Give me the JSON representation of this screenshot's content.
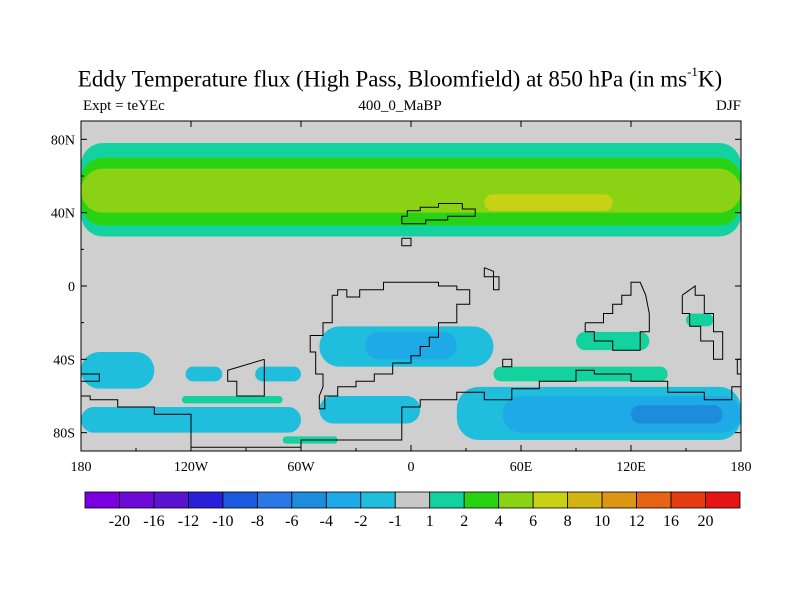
{
  "title": {
    "prefix": "Eddy Temperature flux (High Pass, Bloomfield) at 850 hPa (in ms",
    "superscript": "-1",
    "suffix": "K)"
  },
  "subtitle_left": "Expt = teYEc",
  "subtitle_center": "400_0_MaBP",
  "subtitle_right": "DJF",
  "map": {
    "projection": "cylindrical-equidistant",
    "lon_range": [
      -180,
      180
    ],
    "lat_range": [
      -90,
      90
    ],
    "x_ticks": [
      {
        "value": -180,
        "label": "180"
      },
      {
        "value": -120,
        "label": "120W"
      },
      {
        "value": -60,
        "label": "60W"
      },
      {
        "value": 0,
        "label": "0"
      },
      {
        "value": 60,
        "label": "60E"
      },
      {
        "value": 120,
        "label": "120E"
      },
      {
        "value": 180,
        "label": "180"
      }
    ],
    "y_ticks": [
      {
        "value": 80,
        "label": "80N"
      },
      {
        "value": 40,
        "label": "40N"
      },
      {
        "value": 0,
        "label": "0"
      },
      {
        "value": -40,
        "label": "40S"
      },
      {
        "value": -80,
        "label": "80S"
      }
    ],
    "background_color": "#cfcfcf",
    "coastline_color": "#000000",
    "field_regions": [
      {
        "name": "nh-band-outer",
        "level": 1,
        "lon_range": [
          -180,
          180
        ],
        "lat_range": [
          27,
          78
        ]
      },
      {
        "name": "nh-band-inner",
        "level": 2,
        "lon_range": [
          -180,
          180
        ],
        "lat_range": [
          33,
          70
        ]
      },
      {
        "name": "nh-band-core",
        "level": 4,
        "lon_range": [
          -180,
          180
        ],
        "lat_range": [
          40,
          64
        ]
      },
      {
        "name": "nh-atlantic-max",
        "level": 6,
        "lon_range": [
          40,
          110
        ],
        "lat_range": [
          41,
          50
        ]
      },
      {
        "name": "sh-south-pacific",
        "level": -1,
        "lon_range": [
          -180,
          -140
        ],
        "lat_range": [
          -36,
          -56
        ]
      },
      {
        "name": "sh-east-pacific-1",
        "level": -1,
        "lon_range": [
          -123,
          -103
        ],
        "lat_range": [
          -44,
          -52
        ]
      },
      {
        "name": "sh-east-pacific-2",
        "level": -1,
        "lon_range": [
          -85,
          -60
        ],
        "lat_range": [
          -44,
          -52
        ]
      },
      {
        "name": "sh-atlantic",
        "level": -1,
        "lon_range": [
          -50,
          45
        ],
        "lat_range": [
          -22,
          -44
        ]
      },
      {
        "name": "sh-atlantic-core",
        "level": -2,
        "lon_range": [
          -25,
          25
        ],
        "lat_range": [
          -25,
          -40
        ]
      },
      {
        "name": "southern-ocean-west",
        "level": -1,
        "lon_range": [
          -180,
          -60
        ],
        "lat_range": [
          -66,
          -80
        ]
      },
      {
        "name": "southern-ocean-atlantic",
        "level": -1,
        "lon_range": [
          -50,
          5
        ],
        "lat_range": [
          -60,
          -75
        ]
      },
      {
        "name": "southern-ocean-east",
        "level": -1,
        "lon_range": [
          25,
          180
        ],
        "lat_range": [
          -55,
          -84
        ]
      },
      {
        "name": "southern-ocean-east-core",
        "level": -2,
        "lon_range": [
          50,
          180
        ],
        "lat_range": [
          -60,
          -80
        ]
      },
      {
        "name": "southern-ocean-east-max",
        "level": -4,
        "lon_range": [
          120,
          170
        ],
        "lat_range": [
          -65,
          -75
        ]
      },
      {
        "name": "sh-indian-positive",
        "level": 1,
        "lon_range": [
          45,
          140
        ],
        "lat_range": [
          -44,
          -52
        ]
      },
      {
        "name": "australia-positive",
        "level": 1,
        "lon_range": [
          90,
          130
        ],
        "lat_range": [
          -25,
          -35
        ]
      },
      {
        "name": "new-zealand-positive",
        "level": 1,
        "lon_range": [
          150,
          165
        ],
        "lat_range": [
          -15,
          -22
        ]
      },
      {
        "name": "s-america-positive",
        "level": 1,
        "lon_range": [
          -125,
          -70
        ],
        "lat_range": [
          -60,
          -64
        ]
      },
      {
        "name": "antarctic-positive",
        "level": 1,
        "lon_range": [
          -70,
          -40
        ],
        "lat_range": [
          -82,
          -86
        ]
      }
    ],
    "coastlines": [
      [
        [
          -5,
          34
        ],
        [
          -5,
          38
        ],
        [
          -2,
          38
        ],
        [
          -2,
          41
        ],
        [
          5,
          41
        ],
        [
          5,
          43
        ],
        [
          15,
          43
        ],
        [
          15,
          45
        ],
        [
          28,
          45
        ],
        [
          28,
          42
        ],
        [
          35,
          42
        ],
        [
          35,
          38
        ],
        [
          20,
          38
        ],
        [
          20,
          36
        ],
        [
          8,
          36
        ],
        [
          8,
          34
        ],
        [
          -5,
          34
        ]
      ],
      [
        [
          -5,
          26
        ],
        [
          -5,
          22
        ],
        [
          0,
          22
        ],
        [
          0,
          26
        ],
        [
          -5,
          26
        ]
      ],
      [
        [
          40,
          10
        ],
        [
          40,
          5
        ],
        [
          48,
          5
        ],
        [
          48,
          -2
        ],
        [
          45,
          -2
        ],
        [
          45,
          8
        ],
        [
          40,
          10
        ]
      ],
      [
        [
          -43,
          -5
        ],
        [
          -40,
          -5
        ],
        [
          -40,
          -2
        ],
        [
          -35,
          -2
        ],
        [
          -35,
          -6
        ],
        [
          -28,
          -6
        ],
        [
          -28,
          -2
        ],
        [
          -15,
          -2
        ],
        [
          -15,
          2
        ],
        [
          15,
          2
        ],
        [
          15,
          0
        ],
        [
          25,
          0
        ],
        [
          25,
          -2
        ],
        [
          32,
          -2
        ],
        [
          32,
          -10
        ],
        [
          25,
          -10
        ],
        [
          25,
          -20
        ],
        [
          15,
          -20
        ],
        [
          15,
          -28
        ],
        [
          10,
          -28
        ],
        [
          10,
          -33
        ],
        [
          5,
          -33
        ],
        [
          5,
          -38
        ],
        [
          0,
          -38
        ],
        [
          0,
          -42
        ],
        [
          -10,
          -42
        ],
        [
          -10,
          -48
        ],
        [
          -20,
          -48
        ],
        [
          -20,
          -52
        ],
        [
          -30,
          -52
        ],
        [
          -30,
          -55
        ],
        [
          -40,
          -55
        ],
        [
          -40,
          -60
        ],
        [
          -47,
          -60
        ],
        [
          -47,
          -67
        ],
        [
          -50,
          -67
        ],
        [
          -50,
          -60
        ],
        [
          -48,
          -55
        ],
        [
          -48,
          -48
        ],
        [
          -52,
          -48
        ],
        [
          -52,
          -36
        ],
        [
          -55,
          -36
        ],
        [
          -55,
          -27
        ],
        [
          -48,
          -27
        ],
        [
          -48,
          -20
        ],
        [
          -43,
          -20
        ],
        [
          -43,
          -5
        ]
      ],
      [
        [
          -80,
          -40
        ],
        [
          -80,
          -60
        ],
        [
          -95,
          -60
        ],
        [
          -95,
          -52
        ],
        [
          -100,
          -52
        ],
        [
          -100,
          -46
        ],
        [
          -80,
          -40
        ]
      ],
      [
        [
          -180,
          -60
        ],
        [
          -180,
          -90
        ],
        [
          180,
          -90
        ],
        [
          180,
          -55
        ],
        [
          175,
          -55
        ],
        [
          175,
          -62
        ],
        [
          160,
          -62
        ],
        [
          160,
          -58
        ],
        [
          140,
          -58
        ],
        [
          140,
          -52
        ],
        [
          120,
          -52
        ],
        [
          120,
          -48
        ],
        [
          100,
          -48
        ],
        [
          100,
          -46
        ],
        [
          90,
          -46
        ],
        [
          90,
          -52
        ],
        [
          70,
          -52
        ],
        [
          70,
          -56
        ],
        [
          55,
          -56
        ],
        [
          55,
          -62
        ],
        [
          40,
          -62
        ],
        [
          40,
          -58
        ],
        [
          25,
          -58
        ],
        [
          25,
          -62
        ],
        [
          5,
          -62
        ],
        [
          5,
          -66
        ],
        [
          -5,
          -66
        ],
        [
          -5,
          -84
        ],
        [
          -60,
          -84
        ],
        [
          -60,
          -88
        ],
        [
          -120,
          -88
        ],
        [
          -120,
          -70
        ],
        [
          -140,
          -70
        ],
        [
          -140,
          -66
        ],
        [
          -160,
          -66
        ],
        [
          -160,
          -62
        ],
        [
          -175,
          -62
        ],
        [
          -175,
          -60
        ],
        [
          -180,
          -60
        ]
      ],
      [
        [
          95,
          -20
        ],
        [
          95,
          -25
        ],
        [
          100,
          -25
        ],
        [
          100,
          -30
        ],
        [
          110,
          -30
        ],
        [
          110,
          -35
        ],
        [
          125,
          -35
        ],
        [
          125,
          -25
        ],
        [
          130,
          -25
        ],
        [
          130,
          -15
        ],
        [
          128,
          -5
        ],
        [
          125,
          2
        ],
        [
          120,
          2
        ],
        [
          120,
          -5
        ],
        [
          115,
          -5
        ],
        [
          115,
          -10
        ],
        [
          110,
          -10
        ],
        [
          110,
          -15
        ],
        [
          105,
          -15
        ],
        [
          105,
          -20
        ],
        [
          95,
          -20
        ]
      ],
      [
        [
          148,
          -5
        ],
        [
          148,
          -15
        ],
        [
          152,
          -15
        ],
        [
          152,
          -22
        ],
        [
          158,
          -22
        ],
        [
          158,
          -30
        ],
        [
          165,
          -30
        ],
        [
          165,
          -40
        ],
        [
          170,
          -40
        ],
        [
          170,
          -25
        ],
        [
          165,
          -25
        ],
        [
          165,
          -15
        ],
        [
          160,
          -15
        ],
        [
          160,
          -5
        ],
        [
          155,
          -5
        ],
        [
          155,
          0
        ],
        [
          148,
          -5
        ]
      ],
      [
        [
          -180,
          -48
        ],
        [
          -180,
          -52
        ],
        [
          -170,
          -52
        ],
        [
          -170,
          -48
        ],
        [
          -180,
          -48
        ]
      ],
      [
        [
          180,
          -40
        ],
        [
          180,
          -48
        ],
        [
          178,
          -48
        ],
        [
          178,
          -40
        ],
        [
          180,
          -40
        ]
      ],
      [
        [
          50,
          -40
        ],
        [
          50,
          -44
        ],
        [
          55,
          -44
        ],
        [
          55,
          -40
        ],
        [
          50,
          -40
        ]
      ]
    ]
  },
  "colorbar": {
    "colors": [
      "#7a00e0",
      "#6c0ad8",
      "#5a14d0",
      "#2a1ed8",
      "#1e5ae0",
      "#2a78e6",
      "#1e8cdc",
      "#1eaae6",
      "#1ebedc",
      "#c8c8c8",
      "#14d2a0",
      "#28d214",
      "#8cd214",
      "#c8d214",
      "#d2b414",
      "#dc9614",
      "#e66414",
      "#e63c14",
      "#e61414"
    ],
    "labels": [
      "-20",
      "-16",
      "-12",
      "-10",
      "-8",
      "-6",
      "-4",
      "-2",
      "-1",
      "1",
      "2",
      "4",
      "6",
      "8",
      "10",
      "12",
      "16",
      "20"
    ],
    "levels": [
      -20,
      -16,
      -12,
      -10,
      -8,
      -6,
      -4,
      -2,
      -1,
      1,
      2,
      4,
      6,
      8,
      10,
      12,
      16,
      20
    ]
  },
  "legend_level_colors": {
    "-4": "#1e8cdc",
    "-2": "#1eaae6",
    "-1": "#1ebedc",
    "1": "#14d2a0",
    "2": "#28d214",
    "4": "#8cd214",
    "6": "#c8d214"
  }
}
